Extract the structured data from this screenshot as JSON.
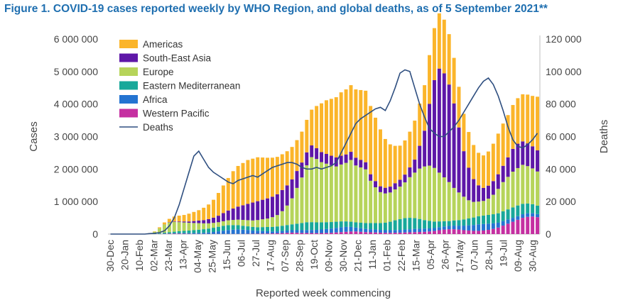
{
  "title": "Figure 1. COVID-19 cases reported weekly by WHO Region, and global deaths, as of 5 September 2021**",
  "chart_data": {
    "type": "bar",
    "stacked": true,
    "xlabel": "Reported week commencing",
    "ylabel": "Cases",
    "y2label": "Deaths",
    "ylim": [
      0,
      6000000
    ],
    "y2lim": [
      0,
      120000
    ],
    "yticks": [
      0,
      1000000,
      2000000,
      3000000,
      4000000,
      5000000,
      6000000
    ],
    "ytick_labels": [
      "0",
      "1 000 000",
      "2 000 000",
      "3 000 000",
      "4 000 000",
      "5 000 000",
      "6 000 000"
    ],
    "y2ticks": [
      0,
      20000,
      40000,
      60000,
      80000,
      100000,
      120000
    ],
    "y2tick_labels": [
      "0",
      "20 000",
      "40 000",
      "60 000",
      "80 000",
      "100 000",
      "120 000"
    ],
    "xtick_labels": [
      "30-Dec",
      "20-Jan",
      "10-Feb",
      "02-Mar",
      "23-Mar",
      "13-Apr",
      "04-May",
      "25-May",
      "15-Jun",
      "06-Jul",
      "27-Jul",
      "17-Aug",
      "07-Sep",
      "28-Sep",
      "19-Oct",
      "09-Nov",
      "30-Nov",
      "21-Dec",
      "11-Jan",
      "01-Feb",
      "22-Feb",
      "15-Mar",
      "05-Apr",
      "26-Apr",
      "17-May",
      "07-Jun",
      "28-Jun",
      "19-Jul",
      "09-Aug",
      "30-Aug"
    ],
    "legend_position": "top-left",
    "colors": {
      "Americas": "#fbb52a",
      "South-East Asia": "#5e17a8",
      "Europe": "#b6d45a",
      "Eastern Mediterranean": "#18a89a",
      "Africa": "#2474d1",
      "Western Pacific": "#c52fa1",
      "Deaths": "#2f4f80"
    },
    "legend": [
      "Americas",
      "South-East Asia",
      "Europe",
      "Eastern Mediterranean",
      "Africa",
      "Western Pacific",
      "Deaths"
    ],
    "week_count": 88,
    "bar_series_unit": "thousand cases",
    "series": [
      {
        "name": "Western Pacific",
        "values": [
          0,
          0,
          0,
          0,
          0,
          0,
          0,
          0,
          2,
          3,
          5,
          8,
          10,
          12,
          12,
          10,
          8,
          6,
          5,
          5,
          5,
          5,
          5,
          5,
          5,
          5,
          5,
          6,
          8,
          10,
          12,
          15,
          18,
          20,
          25,
          30,
          38,
          45,
          40,
          36,
          34,
          32,
          30,
          32,
          36,
          40,
          50,
          60,
          70,
          80,
          80,
          70,
          60,
          55,
          50,
          45,
          40,
          40,
          42,
          45,
          50,
          55,
          60,
          65,
          70,
          80,
          95,
          120,
          140,
          150,
          150,
          140,
          120,
          110,
          100,
          100,
          110,
          130,
          160,
          200,
          260,
          320,
          380,
          440,
          500,
          530,
          540,
          520
        ]
      },
      {
        "name": "Africa",
        "values": [
          0,
          0,
          0,
          0,
          0,
          0,
          0,
          0,
          0,
          0,
          2,
          5,
          8,
          12,
          15,
          18,
          20,
          25,
          30,
          35,
          45,
          60,
          80,
          100,
          120,
          130,
          140,
          130,
          120,
          100,
          90,
          80,
          70,
          60,
          60,
          65,
          70,
          75,
          80,
          85,
          90,
          95,
          100,
          110,
          120,
          130,
          140,
          150,
          150,
          140,
          120,
          110,
          100,
          95,
          90,
          85,
          80,
          80,
          82,
          85,
          90,
          95,
          100,
          100,
          100,
          95,
          90,
          90,
          95,
          100,
          110,
          120,
          140,
          160,
          180,
          200,
          200,
          190,
          170,
          150,
          140,
          130,
          120,
          110,
          110,
          110,
          100,
          95
        ]
      },
      {
        "name": "Eastern Mediterranean",
        "values": [
          0,
          0,
          0,
          0,
          0,
          0,
          0,
          0,
          5,
          10,
          20,
          30,
          40,
          50,
          60,
          70,
          80,
          90,
          100,
          110,
          120,
          130,
          140,
          150,
          150,
          140,
          130,
          120,
          110,
          110,
          110,
          120,
          130,
          140,
          150,
          160,
          170,
          180,
          200,
          220,
          240,
          240,
          230,
          220,
          210,
          200,
          190,
          180,
          170,
          160,
          160,
          170,
          180,
          190,
          200,
          210,
          230,
          260,
          300,
          330,
          350,
          350,
          330,
          300,
          260,
          230,
          200,
          180,
          160,
          150,
          160,
          170,
          190,
          210,
          230,
          250,
          260,
          270,
          280,
          290,
          300,
          310,
          320,
          330,
          320,
          300,
          280,
          260
        ]
      },
      {
        "name": "Europe",
        "values": [
          0,
          0,
          0,
          0,
          0,
          0,
          2,
          5,
          20,
          60,
          150,
          250,
          300,
          300,
          280,
          260,
          240,
          220,
          200,
          180,
          160,
          150,
          140,
          140,
          150,
          160,
          170,
          180,
          190,
          200,
          220,
          240,
          260,
          300,
          350,
          450,
          600,
          800,
          1100,
          1400,
          1750,
          2000,
          1950,
          1850,
          1800,
          1750,
          1700,
          1750,
          1800,
          1900,
          1750,
          1700,
          1650,
          1300,
          1100,
          950,
          900,
          900,
          950,
          1000,
          1100,
          1250,
          1400,
          1550,
          1650,
          1700,
          1650,
          1500,
          1350,
          1200,
          1000,
          850,
          700,
          560,
          480,
          450,
          450,
          500,
          600,
          750,
          900,
          1000,
          1100,
          1150,
          1200,
          1150,
          1100,
          1050
        ]
      },
      {
        "name": "South-East Asia",
        "values": [
          0,
          0,
          0,
          0,
          0,
          0,
          0,
          0,
          0,
          0,
          2,
          5,
          10,
          15,
          20,
          30,
          40,
          60,
          80,
          100,
          130,
          160,
          200,
          250,
          300,
          350,
          400,
          450,
          500,
          550,
          580,
          600,
          620,
          630,
          640,
          650,
          620,
          580,
          520,
          460,
          400,
          360,
          330,
          310,
          300,
          290,
          280,
          270,
          260,
          250,
          240,
          230,
          220,
          200,
          190,
          180,
          175,
          180,
          190,
          210,
          240,
          300,
          400,
          700,
          1100,
          1900,
          2700,
          3200,
          3200,
          3000,
          2600,
          2000,
          1400,
          1000,
          700,
          500,
          400,
          400,
          420,
          450,
          500,
          600,
          700,
          750,
          720,
          700,
          680,
          650
        ]
      },
      {
        "name": "Americas",
        "values": [
          0,
          0,
          0,
          0,
          0,
          0,
          0,
          0,
          3,
          10,
          30,
          60,
          100,
          150,
          180,
          200,
          240,
          280,
          320,
          380,
          450,
          550,
          700,
          850,
          1000,
          1150,
          1250,
          1300,
          1350,
          1350,
          1350,
          1300,
          1250,
          1200,
          1150,
          1100,
          1050,
          1000,
          950,
          950,
          1000,
          1100,
          1300,
          1500,
          1650,
          1750,
          1850,
          1950,
          2000,
          2050,
          2100,
          2150,
          2200,
          2100,
          1950,
          1750,
          1500,
          1300,
          1150,
          1050,
          1050,
          1100,
          1200,
          1300,
          1400,
          1500,
          1600,
          1700,
          1650,
          1550,
          1400,
          1250,
          1150,
          1100,
          1050,
          1000,
          1000,
          1050,
          1150,
          1250,
          1300,
          1300,
          1350,
          1400,
          1450,
          1500,
          1550,
          1650
        ]
      }
    ],
    "deaths": [
      0,
      0,
      0,
      0,
      0,
      0,
      0,
      0,
      300,
      500,
      900,
      2000,
      5000,
      10000,
      18000,
      28000,
      38000,
      48000,
      51000,
      46000,
      41000,
      38000,
      36000,
      34000,
      32000,
      31000,
      33000,
      34000,
      35000,
      36000,
      35000,
      37000,
      39000,
      41000,
      42000,
      43000,
      44000,
      44000,
      43000,
      41000,
      40000,
      40000,
      41000,
      40000,
      41000,
      42000,
      44000,
      50000,
      56000,
      62000,
      68000,
      71000,
      73000,
      75000,
      77000,
      78000,
      76000,
      82000,
      90000,
      99000,
      101000,
      100000,
      90000,
      80000,
      72000,
      65000,
      62000,
      60000,
      60000,
      63000,
      66000,
      70000,
      75000,
      80000,
      85000,
      90000,
      94000,
      96000,
      92000,
      85000,
      76000,
      66000,
      58000,
      54000,
      53000,
      55000,
      58000,
      62000
    ]
  }
}
